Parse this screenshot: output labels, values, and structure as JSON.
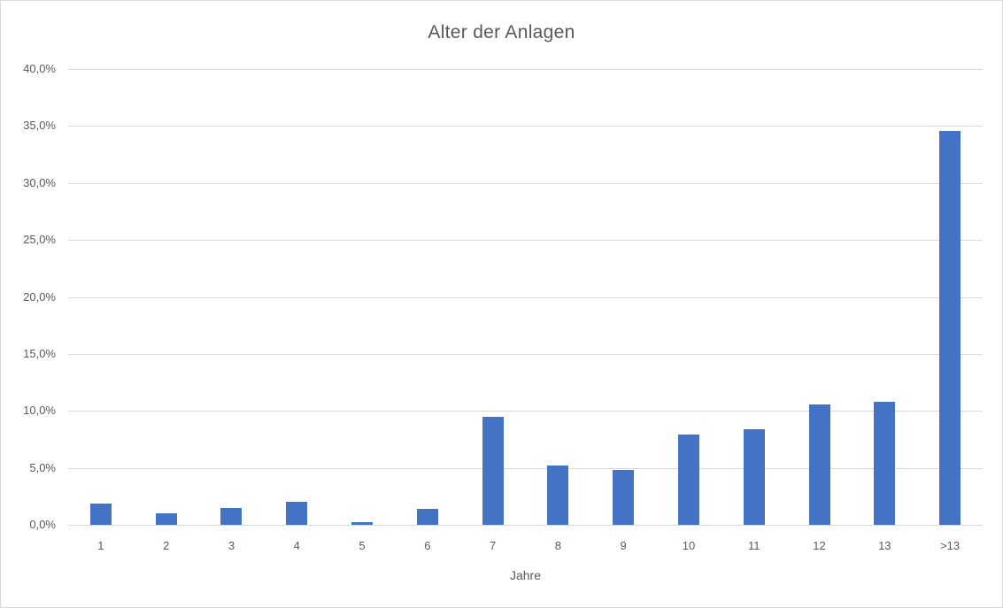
{
  "chart_data": {
    "type": "bar",
    "title": "Alter der Anlagen",
    "xlabel": "Jahre",
    "ylabel": "",
    "categories": [
      "1",
      "2",
      "3",
      "4",
      "5",
      "6",
      "7",
      "8",
      "9",
      "10",
      "11",
      "12",
      "13",
      ">13"
    ],
    "values": [
      1.9,
      1.0,
      1.5,
      2.0,
      0.2,
      1.4,
      9.5,
      5.2,
      4.8,
      7.9,
      8.4,
      10.6,
      10.8,
      34.6
    ],
    "ylim": [
      0,
      40
    ],
    "ytick_step": 5,
    "ytick_labels": [
      "0,0%",
      "5,0%",
      "10,0%",
      "15,0%",
      "20,0%",
      "25,0%",
      "30,0%",
      "35,0%",
      "40,0%"
    ],
    "grid": true,
    "legend": false,
    "colors": {
      "bar": "#4472C4",
      "gridline": "#D9D9D9",
      "text": "#595959",
      "border": "#D9D9D9",
      "background": "#FFFFFF"
    }
  }
}
